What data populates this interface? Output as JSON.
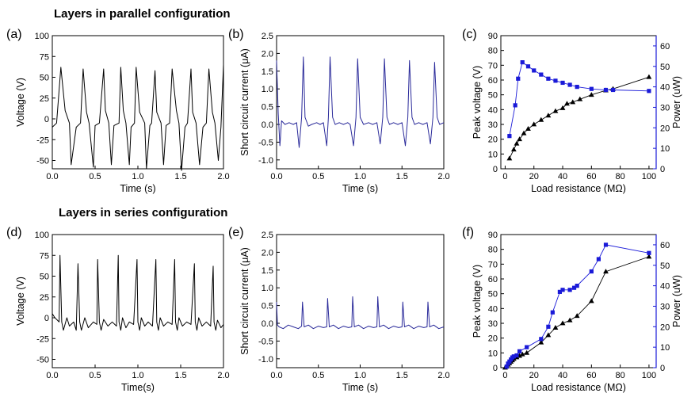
{
  "sections": {
    "parallel_title": "Layers in parallel configuration",
    "series_title": "Layers in series configuration"
  },
  "colors": {
    "black": "#000000",
    "blue": "#1a1ad8",
    "trace_blue": "#2a2a9a"
  },
  "chart_data": [
    {
      "id": "a",
      "panel_label": "(a)",
      "type": "line",
      "xlabel": "Time (s)",
      "ylabel": "Voltage (V)",
      "xlim": [
        0,
        2.0
      ],
      "ylim": [
        -60,
        100
      ],
      "xticks": [
        0.0,
        0.5,
        1.0,
        1.5,
        2.0
      ],
      "xtick_labels": [
        "0.0",
        "0.5",
        "1.0",
        "1.5",
        "2.0"
      ],
      "yticks": [
        -50,
        -25,
        0,
        25,
        50,
        75,
        100
      ],
      "ytick_labels": [
        "-50",
        "-25",
        "0",
        "25",
        "50",
        "75",
        "100"
      ],
      "line_color": "#000000",
      "series": [
        {
          "x": [
            0.0,
            0.05,
            0.1,
            0.15,
            0.2,
            0.22,
            0.28,
            0.33,
            0.36,
            0.4,
            0.43,
            0.48,
            0.5,
            0.55,
            0.6,
            0.62,
            0.66,
            0.69,
            0.72,
            0.78,
            0.8,
            0.83,
            0.86,
            0.9,
            0.92,
            0.96,
            0.98,
            1.02,
            1.08,
            1.1,
            1.14,
            1.16,
            1.2,
            1.22,
            1.27,
            1.3,
            1.33,
            1.37,
            1.4,
            1.45,
            1.48,
            1.51,
            1.55,
            1.58,
            1.62,
            1.64,
            1.68,
            1.72,
            1.76,
            1.8,
            1.83,
            1.87,
            1.9,
            1.94,
            1.97,
            2.0
          ],
          "y": [
            -10,
            -5,
            62,
            10,
            -5,
            -55,
            -10,
            -5,
            60,
            8,
            -5,
            -58,
            -8,
            -5,
            60,
            10,
            -5,
            -55,
            -8,
            -5,
            62,
            10,
            -5,
            -55,
            -10,
            -5,
            62,
            8,
            -5,
            -60,
            -8,
            -5,
            58,
            8,
            -5,
            -55,
            -8,
            -5,
            60,
            10,
            -5,
            -62,
            -10,
            -5,
            60,
            8,
            -5,
            -55,
            -10,
            -5,
            60,
            8,
            -5,
            -50,
            -10,
            65
          ]
        }
      ]
    },
    {
      "id": "b",
      "panel_label": "(b)",
      "type": "line",
      "xlabel": "Time (s)",
      "ylabel": "Short circuit current (μA)",
      "xlim": [
        0,
        2.0
      ],
      "ylim": [
        -1.25,
        2.5
      ],
      "xticks": [
        0.0,
        0.5,
        1.0,
        1.5,
        2.0
      ],
      "xtick_labels": [
        "0.0",
        "0.5",
        "1.0",
        "1.5",
        "2.0"
      ],
      "yticks": [
        -1.0,
        -0.5,
        0.0,
        0.5,
        1.0,
        1.5,
        2.0,
        2.5
      ],
      "ytick_labels": [
        "-1.0",
        "-0.5",
        "0.0",
        "0.5",
        "1.0",
        "1.5",
        "2.0",
        "2.5"
      ],
      "line_color": "#2a2a9a",
      "series": [
        {
          "x": [
            0.0,
            0.02,
            0.04,
            0.06,
            0.1,
            0.15,
            0.2,
            0.24,
            0.27,
            0.3,
            0.32,
            0.34,
            0.38,
            0.42,
            0.48,
            0.52,
            0.56,
            0.6,
            0.62,
            0.64,
            0.67,
            0.7,
            0.75,
            0.8,
            0.85,
            0.88,
            0.92,
            0.95,
            0.97,
            1.0,
            1.04,
            1.1,
            1.15,
            1.2,
            1.24,
            1.27,
            1.29,
            1.32,
            1.35,
            1.4,
            1.45,
            1.5,
            1.54,
            1.57,
            1.59,
            1.62,
            1.65,
            1.7,
            1.75,
            1.8,
            1.84,
            1.87,
            1.89,
            1.92,
            1.95,
            2.0
          ],
          "y": [
            1.8,
            0.3,
            -0.6,
            0.1,
            0.0,
            0.05,
            0.0,
            0.05,
            -0.65,
            0.2,
            1.9,
            0.2,
            -0.05,
            0.0,
            0.05,
            0.0,
            0.05,
            -0.6,
            0.2,
            1.9,
            0.2,
            0.0,
            0.05,
            0.0,
            0.05,
            0.0,
            -0.6,
            0.2,
            1.85,
            0.2,
            0.0,
            0.05,
            0.0,
            0.05,
            -0.55,
            0.2,
            1.85,
            0.2,
            0.0,
            0.05,
            0.0,
            0.05,
            -0.6,
            0.2,
            1.8,
            0.2,
            0.0,
            0.05,
            0.0,
            0.05,
            -0.55,
            0.2,
            1.75,
            0.2,
            0.0,
            0.05
          ]
        }
      ]
    },
    {
      "id": "c",
      "panel_label": "(c)",
      "type": "scatter",
      "xlabel": "Load resistance (MΩ)",
      "ylabel": "Peak voltage (V)",
      "y2label": "Power (uW)",
      "xlim": [
        -3,
        105
      ],
      "ylim": [
        0,
        90
      ],
      "y2lim": [
        0,
        65
      ],
      "xticks": [
        0,
        20,
        40,
        60,
        80,
        100
      ],
      "xtick_labels": [
        "0",
        "20",
        "40",
        "60",
        "80",
        "100"
      ],
      "yticks": [
        0,
        10,
        20,
        30,
        40,
        50,
        60,
        70,
        80,
        90
      ],
      "ytick_labels": [
        "0",
        "10",
        "20",
        "30",
        "40",
        "50",
        "60",
        "70",
        "80",
        "90"
      ],
      "y2ticks": [
        0,
        10,
        20,
        30,
        40,
        50,
        60
      ],
      "y2tick_labels": [
        "0",
        "10",
        "20",
        "30",
        "40",
        "50",
        "60"
      ],
      "series": [
        {
          "axis": "left",
          "marker": "triangle",
          "color": "#000000",
          "x": [
            3,
            6,
            8,
            10,
            13,
            16,
            20,
            25,
            30,
            35,
            40,
            43,
            47,
            52,
            60,
            70,
            75,
            100
          ],
          "y": [
            7,
            13,
            17,
            20,
            24,
            27,
            30,
            33,
            36,
            39,
            41,
            44,
            45,
            47,
            50,
            53,
            54,
            62
          ]
        },
        {
          "axis": "right",
          "marker": "square",
          "color": "#1a1ad8",
          "x": [
            3,
            7,
            9,
            12,
            16,
            20,
            25,
            30,
            35,
            40,
            45,
            50,
            60,
            70,
            75,
            100
          ],
          "y": [
            16,
            31,
            44,
            52,
            50,
            48,
            46,
            44,
            43,
            42,
            41,
            40,
            39,
            38.5,
            38.5,
            38
          ]
        }
      ]
    },
    {
      "id": "d",
      "panel_label": "(d)",
      "type": "line",
      "xlabel": "Time(s)",
      "ylabel": "Voltage (V)",
      "xlim": [
        0,
        2.0
      ],
      "ylim": [
        -60,
        100
      ],
      "xticks": [
        0.0,
        0.5,
        1.0,
        1.5,
        2.0
      ],
      "xtick_labels": [
        "0.0",
        "0.5",
        "1.0",
        "1.5",
        "2.0"
      ],
      "yticks": [
        -50,
        -25,
        0,
        25,
        50,
        75,
        100
      ],
      "ytick_labels": [
        "-50",
        "-25",
        "0",
        "25",
        "50",
        "75",
        "100"
      ],
      "line_color": "#000000",
      "series": [
        {
          "x": [
            0.0,
            0.03,
            0.06,
            0.08,
            0.09,
            0.11,
            0.13,
            0.17,
            0.2,
            0.25,
            0.28,
            0.3,
            0.32,
            0.34,
            0.38,
            0.42,
            0.48,
            0.52,
            0.53,
            0.55,
            0.57,
            0.6,
            0.65,
            0.7,
            0.75,
            0.77,
            0.78,
            0.8,
            0.82,
            0.86,
            0.9,
            0.95,
            0.99,
            1.0,
            1.02,
            1.04,
            1.08,
            1.12,
            1.17,
            1.21,
            1.22,
            1.24,
            1.26,
            1.3,
            1.35,
            1.4,
            1.43,
            1.44,
            1.46,
            1.48,
            1.52,
            1.57,
            1.62,
            1.66,
            1.67,
            1.69,
            1.71,
            1.75,
            1.8,
            1.85,
            1.88,
            1.89,
            1.91,
            1.93,
            1.97,
            2.0
          ],
          "y": [
            5,
            0,
            -3,
            -5,
            75,
            -5,
            -15,
            0,
            -10,
            -5,
            -15,
            65,
            -5,
            -15,
            0,
            -12,
            -5,
            -8,
            70,
            -5,
            -15,
            -2,
            -10,
            -5,
            -10,
            75,
            -5,
            -15,
            0,
            -12,
            -5,
            -8,
            70,
            -5,
            -15,
            0,
            -10,
            -5,
            -10,
            70,
            -5,
            -15,
            0,
            -10,
            -5,
            -8,
            70,
            -5,
            -15,
            0,
            -10,
            -5,
            -8,
            65,
            -5,
            -15,
            0,
            -10,
            -5,
            -10,
            62,
            -5,
            -15,
            -3,
            -12,
            -8
          ]
        }
      ]
    },
    {
      "id": "e",
      "panel_label": "(e)",
      "type": "line",
      "xlabel": "Time (s)",
      "ylabel": "Short circuit current (μA)",
      "xlim": [
        0,
        2.0
      ],
      "ylim": [
        -1.25,
        2.5
      ],
      "xticks": [
        0.0,
        0.5,
        1.0,
        1.5,
        2.0
      ],
      "xtick_labels": [
        "0.0",
        "0.5",
        "1.0",
        "1.5",
        "2.0"
      ],
      "yticks": [
        -1.0,
        -0.5,
        0.0,
        0.5,
        1.0,
        1.5,
        2.0,
        2.5
      ],
      "ytick_labels": [
        "-1.0",
        "-0.5",
        "0.0",
        "0.5",
        "1.0",
        "1.5",
        "2.0",
        "2.5"
      ],
      "line_color": "#2a2a9a",
      "series": [
        {
          "x": [
            0.0,
            0.01,
            0.03,
            0.08,
            0.14,
            0.2,
            0.26,
            0.3,
            0.31,
            0.33,
            0.38,
            0.44,
            0.5,
            0.56,
            0.6,
            0.61,
            0.63,
            0.68,
            0.74,
            0.8,
            0.86,
            0.9,
            0.91,
            0.93,
            0.98,
            1.04,
            1.1,
            1.16,
            1.2,
            1.21,
            1.23,
            1.28,
            1.34,
            1.4,
            1.46,
            1.5,
            1.51,
            1.53,
            1.58,
            1.64,
            1.7,
            1.76,
            1.8,
            1.81,
            1.83,
            1.88,
            1.94,
            2.0
          ],
          "y": [
            0.6,
            -0.05,
            -0.1,
            -0.15,
            -0.05,
            -0.1,
            -0.15,
            -0.08,
            0.6,
            -0.1,
            -0.05,
            -0.15,
            -0.08,
            -0.12,
            -0.1,
            0.7,
            -0.1,
            -0.05,
            -0.15,
            -0.08,
            -0.12,
            -0.1,
            0.75,
            -0.1,
            -0.05,
            -0.15,
            -0.08,
            -0.12,
            -0.1,
            0.75,
            -0.1,
            -0.05,
            -0.15,
            -0.08,
            -0.12,
            -0.1,
            0.6,
            -0.1,
            -0.05,
            -0.15,
            -0.08,
            -0.12,
            -0.1,
            0.6,
            -0.1,
            -0.05,
            -0.15,
            -0.1
          ]
        }
      ]
    },
    {
      "id": "f",
      "panel_label": "(f)",
      "type": "scatter",
      "xlabel": "Load resistance (MΩ)",
      "ylabel": "Peak voltage (V)",
      "y2label": "Power (uW)",
      "xlim": [
        -3,
        105
      ],
      "ylim": [
        0,
        90
      ],
      "y2lim": [
        0,
        65
      ],
      "xticks": [
        0,
        20,
        40,
        60,
        80,
        100
      ],
      "xtick_labels": [
        "0",
        "20",
        "40",
        "60",
        "80",
        "100"
      ],
      "yticks": [
        0,
        10,
        20,
        30,
        40,
        50,
        60,
        70,
        80,
        90
      ],
      "ytick_labels": [
        "0",
        "10",
        "20",
        "30",
        "40",
        "50",
        "60",
        "70",
        "80",
        "90"
      ],
      "y2ticks": [
        0,
        10,
        20,
        30,
        40,
        50,
        60
      ],
      "y2tick_labels": [
        "0",
        "10",
        "20",
        "30",
        "40",
        "50",
        "60"
      ],
      "series": [
        {
          "axis": "left",
          "marker": "triangle",
          "color": "#000000",
          "x": [
            0,
            1,
            2,
            3,
            4,
            5,
            6,
            8,
            10,
            12,
            15,
            25,
            30,
            35,
            40,
            45,
            50,
            60,
            70,
            100
          ],
          "y": [
            0,
            1,
            2,
            3,
            4,
            5,
            6,
            7,
            8,
            9,
            10,
            17,
            22,
            27,
            30,
            32,
            35,
            45,
            65,
            75
          ]
        },
        {
          "axis": "right",
          "marker": "square",
          "color": "#1a1ad8",
          "x": [
            1,
            2,
            3,
            4,
            5,
            6,
            8,
            10,
            15,
            25,
            30,
            33,
            38,
            40,
            45,
            48,
            50,
            60,
            65,
            70,
            100
          ],
          "y": [
            0.5,
            2,
            3,
            4,
            5,
            5.5,
            6,
            8,
            10,
            14,
            20,
            27,
            37,
            38,
            38,
            39,
            40,
            47,
            53,
            60,
            56
          ]
        }
      ]
    }
  ]
}
